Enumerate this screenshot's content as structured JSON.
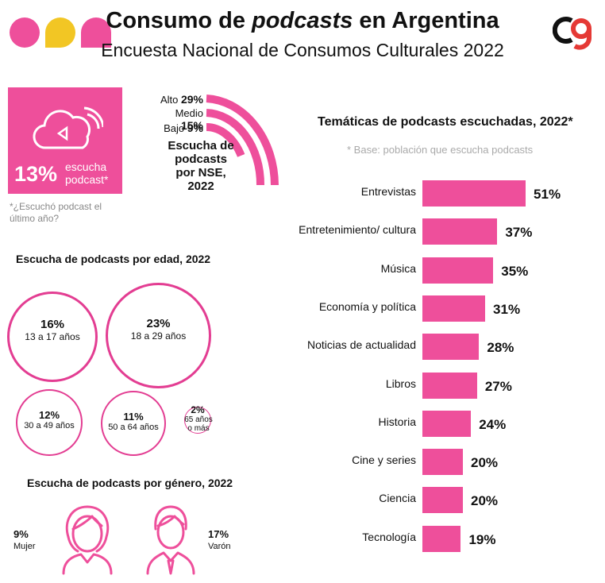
{
  "header": {
    "title_prefix": "Consumo de ",
    "title_em": "podcasts",
    "title_suffix": " en Argentina",
    "subtitle": "Encuesta Nacional de Consumos Culturales 2022"
  },
  "headline": {
    "icon": "cloud-audio-icon",
    "percent": "13%",
    "label": "escucha podcast*",
    "note": "*¿Escuchó podcast el último año?"
  },
  "nse": {
    "rows": [
      {
        "label": "Alto",
        "value": "29%"
      },
      {
        "label": "Medio",
        "value": "15%"
      },
      {
        "label": "Bajo",
        "value": "9%"
      }
    ],
    "caption": "Escucha de podcasts por NSE, 2022"
  },
  "age": {
    "title": "Escucha de podcasts por edad, 2022",
    "groups": [
      {
        "pct": "16%",
        "label": "13 a 17 años"
      },
      {
        "pct": "23%",
        "label": "18 a 29 años"
      },
      {
        "pct": "12%",
        "label": "30 a 49 años"
      },
      {
        "pct": "11%",
        "label": "50 a 64 años"
      },
      {
        "pct": "2%",
        "label": "65 años o más"
      }
    ]
  },
  "gender": {
    "title": "Escucha de podcasts por género, 2022",
    "female": {
      "pct": "9%",
      "label": "Mujer",
      "icon": "woman-icon"
    },
    "male": {
      "pct": "17%",
      "label": "Varón",
      "icon": "man-icon"
    }
  },
  "colors": {
    "accent": "#ee4f9b",
    "yellow": "#f2c624",
    "logo_red": "#e53935"
  },
  "chart_data": {
    "type": "bar",
    "title": "Temáticas de podcasts escuchadas, 2022*",
    "subtitle": "* Base: población que escucha podcasts",
    "categories": [
      "Entrevistas",
      "Entretenimiento/ cultura",
      "Música",
      "Economía y política",
      "Noticias de actualidad",
      "Libros",
      "Historia",
      "Cine y series",
      "Ciencia",
      "Tecnología"
    ],
    "values": [
      51,
      37,
      35,
      31,
      28,
      27,
      24,
      20,
      20,
      19
    ],
    "value_labels": [
      "51%",
      "37%",
      "35%",
      "31%",
      "28%",
      "27%",
      "24%",
      "20%",
      "20%",
      "19%"
    ],
    "orientation": "horizontal"
  }
}
